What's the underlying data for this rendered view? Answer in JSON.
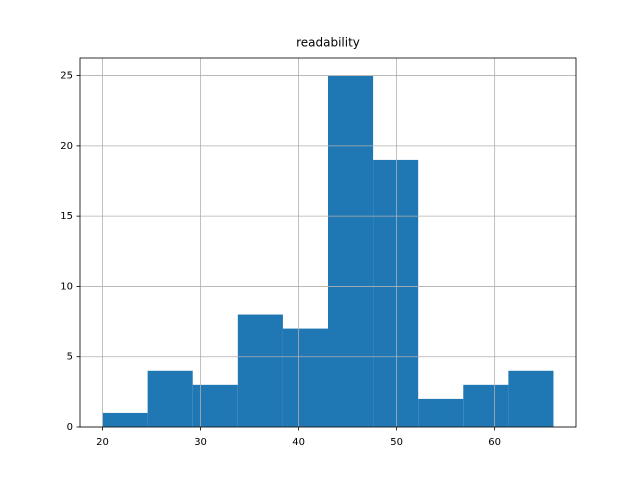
{
  "chart_data": {
    "type": "histogram",
    "title": "readability",
    "bins": [
      20,
      24.6,
      29.2,
      33.8,
      38.4,
      43.0,
      47.6,
      52.2,
      56.8,
      61.4,
      66.0
    ],
    "counts": [
      1,
      4,
      3,
      8,
      7,
      25,
      19,
      2,
      3,
      4
    ],
    "color": "#1f77b4",
    "xlim": [
      17.7,
      68.3
    ],
    "xticks": [
      20,
      30,
      40,
      50,
      60
    ],
    "ylim": [
      0,
      26.25
    ],
    "yticks": [
      0,
      5,
      10,
      15,
      20,
      25
    ],
    "grid": true
  }
}
